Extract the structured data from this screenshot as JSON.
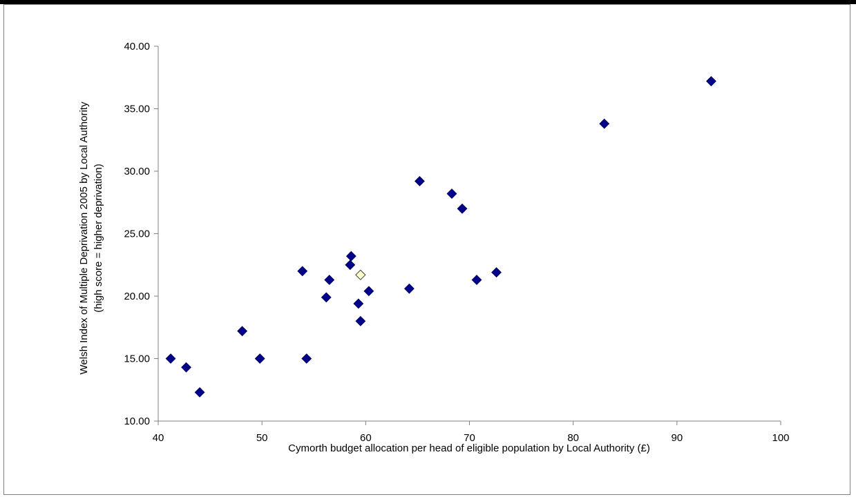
{
  "chart_data": {
    "type": "scatter",
    "title": "",
    "xlabel": "Cymorth budget allocation per head of eligible population by Local Authority (£)",
    "ylabel_line1": "Welsh Index of Multiple Deprivation 2005 by Local Authority",
    "ylabel_line2": "(high score = higher deprivation)",
    "xlim": [
      40,
      100
    ],
    "ylim": [
      10,
      40
    ],
    "x_ticks": [
      "40",
      "50",
      "60",
      "70",
      "80",
      "90",
      "100"
    ],
    "y_ticks": [
      "10.00",
      "15.00",
      "20.00",
      "25.00",
      "30.00",
      "35.00",
      "40.00"
    ],
    "grid": false,
    "marker": "diamond",
    "colors": {
      "point": "#00008B",
      "highlight": "#FFFFCC",
      "highlight_edge": "#404040"
    },
    "series": [
      {
        "points": [
          {
            "x": 41.2,
            "y": 15.0
          },
          {
            "x": 42.7,
            "y": 14.3
          },
          {
            "x": 44.0,
            "y": 12.3
          },
          {
            "x": 48.1,
            "y": 17.2
          },
          {
            "x": 49.8,
            "y": 15.0
          },
          {
            "x": 53.9,
            "y": 22.0
          },
          {
            "x": 54.3,
            "y": 15.0
          },
          {
            "x": 56.2,
            "y": 19.9
          },
          {
            "x": 56.5,
            "y": 21.3
          },
          {
            "x": 58.5,
            "y": 22.5
          },
          {
            "x": 58.6,
            "y": 23.2
          },
          {
            "x": 59.3,
            "y": 19.4
          },
          {
            "x": 59.5,
            "y": 18.0
          },
          {
            "x": 60.3,
            "y": 20.4
          },
          {
            "x": 64.2,
            "y": 20.6
          },
          {
            "x": 65.2,
            "y": 29.2
          },
          {
            "x": 68.3,
            "y": 28.2
          },
          {
            "x": 69.3,
            "y": 27.0
          },
          {
            "x": 70.7,
            "y": 21.3
          },
          {
            "x": 72.6,
            "y": 21.9
          },
          {
            "x": 83.0,
            "y": 33.8
          },
          {
            "x": 93.3,
            "y": 37.2
          }
        ]
      },
      {
        "highlight": true,
        "points": [
          {
            "x": 59.5,
            "y": 21.7
          }
        ]
      }
    ]
  }
}
